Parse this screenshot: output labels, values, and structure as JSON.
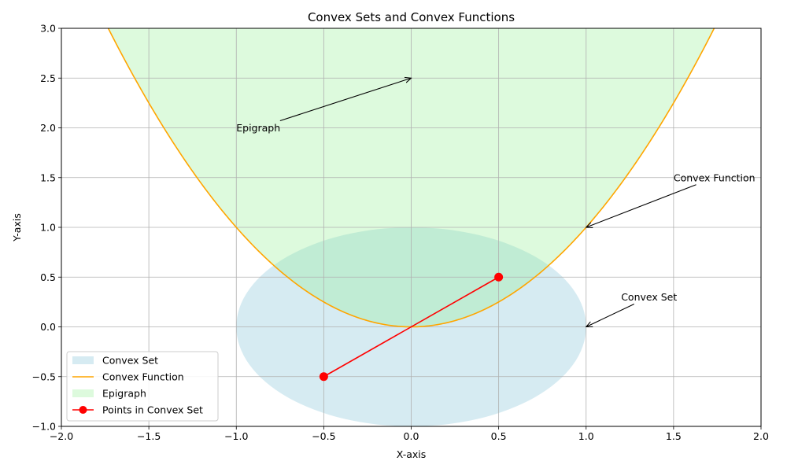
{
  "chart_data": {
    "type": "line",
    "title": "Convex Sets and Convex Functions",
    "xlabel": "X-axis",
    "ylabel": "Y-axis",
    "xlim": [
      -2.0,
      2.0
    ],
    "ylim": [
      -1.0,
      3.0
    ],
    "xticks": [
      -2.0,
      -1.5,
      -1.0,
      -0.5,
      0.0,
      0.5,
      1.0,
      1.5,
      2.0
    ],
    "yticks": [
      -1.0,
      -0.5,
      0.0,
      0.5,
      1.0,
      1.5,
      2.0,
      2.5,
      3.0
    ],
    "xtick_labels": [
      "−2.0",
      "−1.5",
      "−1.0",
      "−0.5",
      "0.0",
      "0.5",
      "1.0",
      "1.5",
      "2.0"
    ],
    "ytick_labels": [
      "−1.0",
      "−0.5",
      "0.0",
      "0.5",
      "1.0",
      "1.5",
      "2.0",
      "2.5",
      "3.0"
    ],
    "grid": true,
    "legend_position": "lower-left",
    "series": [
      {
        "name": "Convex Set",
        "kind": "ellipse",
        "center": [
          0.0,
          0.0
        ],
        "radii": [
          1.0,
          1.0
        ],
        "color": "#add8e6",
        "alpha": 0.5
      },
      {
        "name": "Convex Function",
        "kind": "function",
        "expression": "x^2",
        "x_range": [
          -2.0,
          2.0
        ],
        "color": "#ffa500"
      },
      {
        "name": "Epigraph",
        "kind": "fill_above",
        "expression": "x^2",
        "color": "#90ee90",
        "alpha": 0.3
      },
      {
        "name": "Points in Convex Set",
        "kind": "line_markers",
        "x": [
          -0.5,
          0.5
        ],
        "y": [
          -0.5,
          0.5
        ],
        "color": "#ff0000"
      }
    ],
    "annotations": [
      {
        "text": "Epigraph",
        "xy": [
          0.0,
          2.5
        ],
        "xytext": [
          -1.0,
          2.0
        ]
      },
      {
        "text": "Convex Function",
        "xy": [
          1.0,
          1.0
        ],
        "xytext": [
          1.5,
          1.5
        ]
      },
      {
        "text": "Convex Set",
        "xy": [
          1.0,
          0.0
        ],
        "xytext": [
          1.2,
          0.3
        ]
      }
    ]
  }
}
